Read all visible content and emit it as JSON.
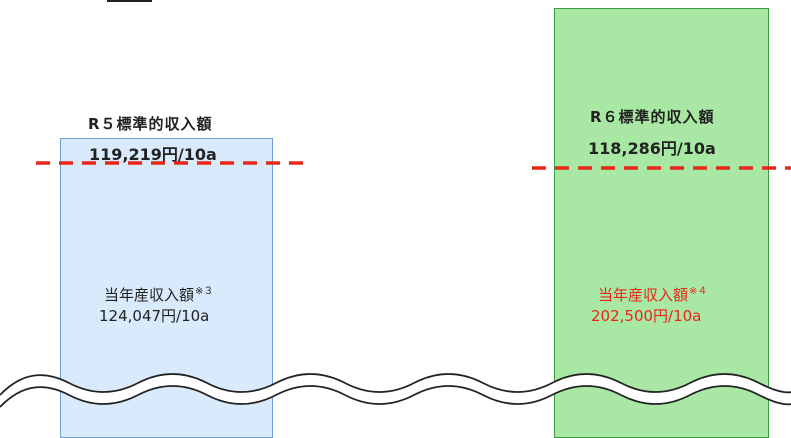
{
  "r5": {
    "standard_title": "R５標準的収入額",
    "standard_value": "119,219円/10a",
    "income_label": "当年産収入額",
    "income_note": "※３",
    "income_value": "124,047円/10a"
  },
  "r6": {
    "standard_title": "R６標準的収入額",
    "standard_value": "118,286円/10a",
    "income_label": "当年産収入額",
    "income_note": "※４",
    "income_value": "202,500円/10a"
  },
  "colors": {
    "r5_fill": "#d8eafc",
    "r6_fill": "#a9e8a4",
    "standard_line": "#e8261a",
    "r6_income_text": "#e8261a"
  }
}
